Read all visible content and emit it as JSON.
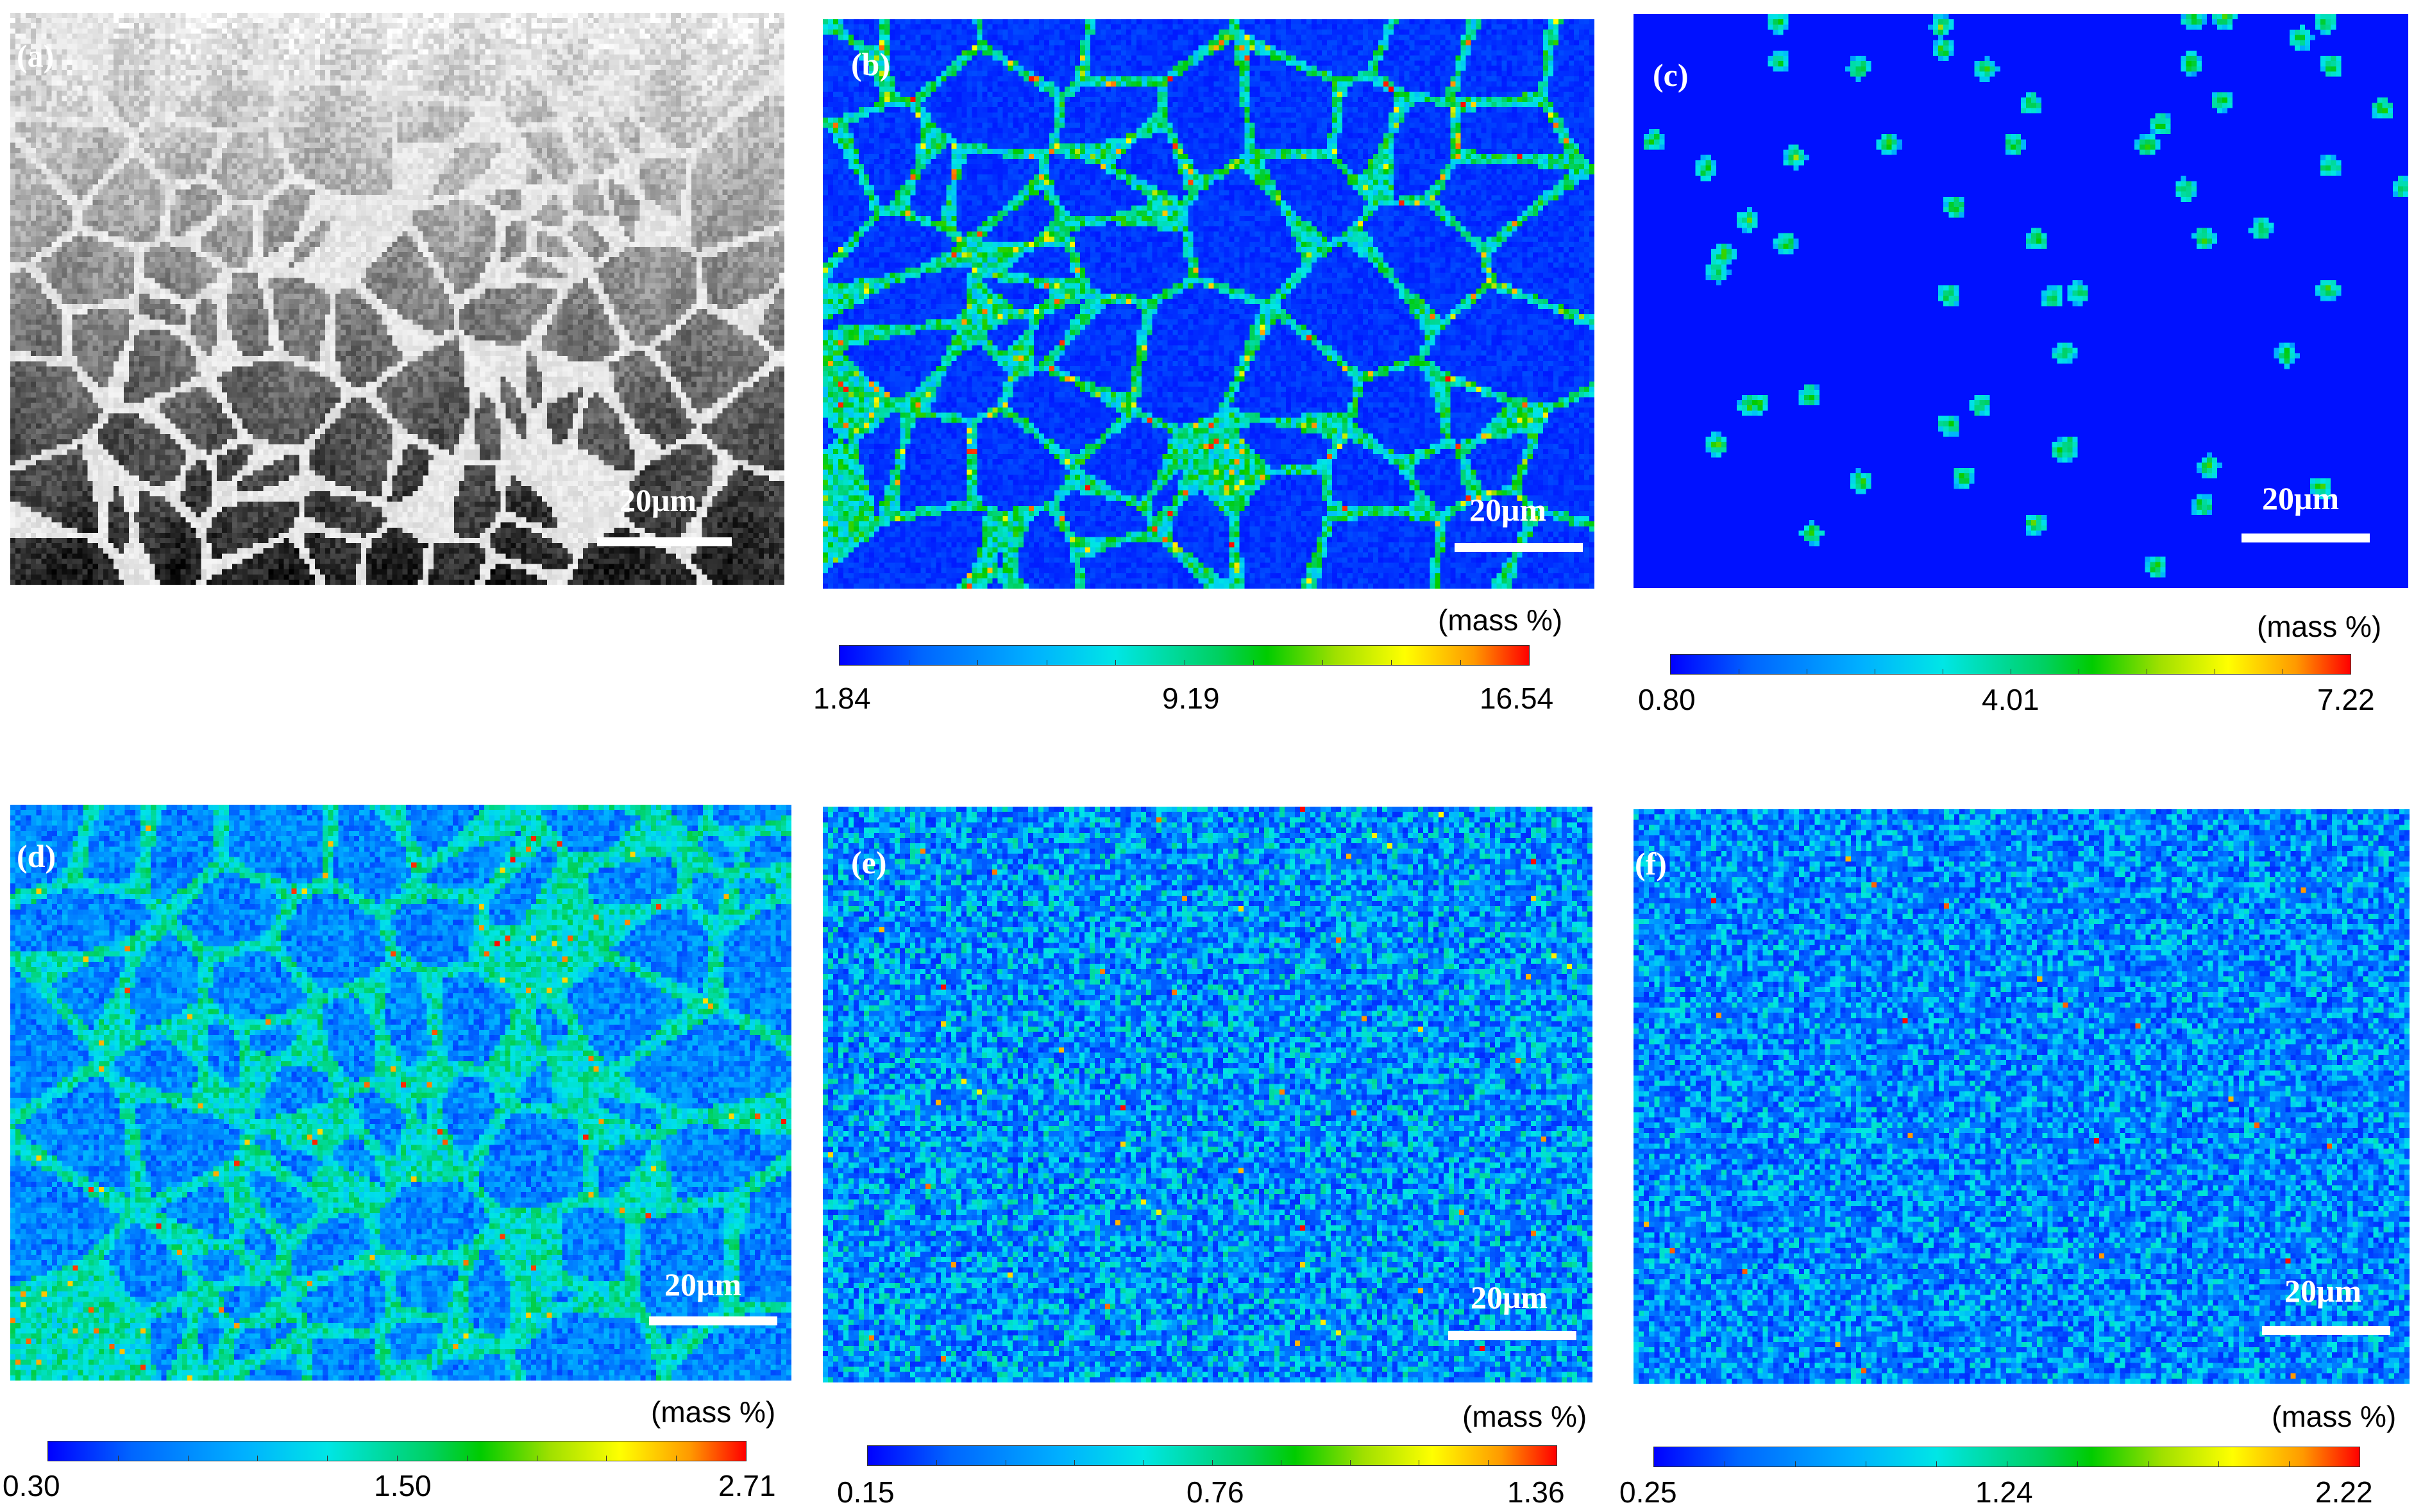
{
  "panels": [
    {
      "id": "a",
      "label": "(a)",
      "scale": "20μm",
      "mode": "gray"
    },
    {
      "id": "b",
      "label": "(b)",
      "scale": "20μm",
      "mode": "network",
      "colorbar": {
        "unit": "(mass %)",
        "min": "1.84",
        "mid": "9.19",
        "max": "16.54"
      }
    },
    {
      "id": "c",
      "label": "(c)",
      "scale": "20μm",
      "mode": "sparse",
      "colorbar": {
        "unit": "(mass %)",
        "min": "0.80",
        "mid": "4.01",
        "max": "7.22"
      }
    },
    {
      "id": "d",
      "label": "(d)",
      "scale": "20μm",
      "mode": "cells",
      "colorbar": {
        "unit": "(mass %)",
        "min": "0.30",
        "mid": "1.50",
        "max": "2.71"
      }
    },
    {
      "id": "e",
      "label": "(e)",
      "scale": "20μm",
      "mode": "noise",
      "colorbar": {
        "unit": "(mass %)",
        "min": "0.15",
        "mid": "0.76",
        "max": "1.36"
      }
    },
    {
      "id": "f",
      "label": "(f)",
      "scale": "20μm",
      "mode": "noise2",
      "colorbar": {
        "unit": "(mass %)",
        "min": "0.25",
        "mid": "1.24",
        "max": "2.22"
      }
    }
  ],
  "colors": {
    "scale_bar": "#ffffff",
    "label": "#ffffff"
  }
}
